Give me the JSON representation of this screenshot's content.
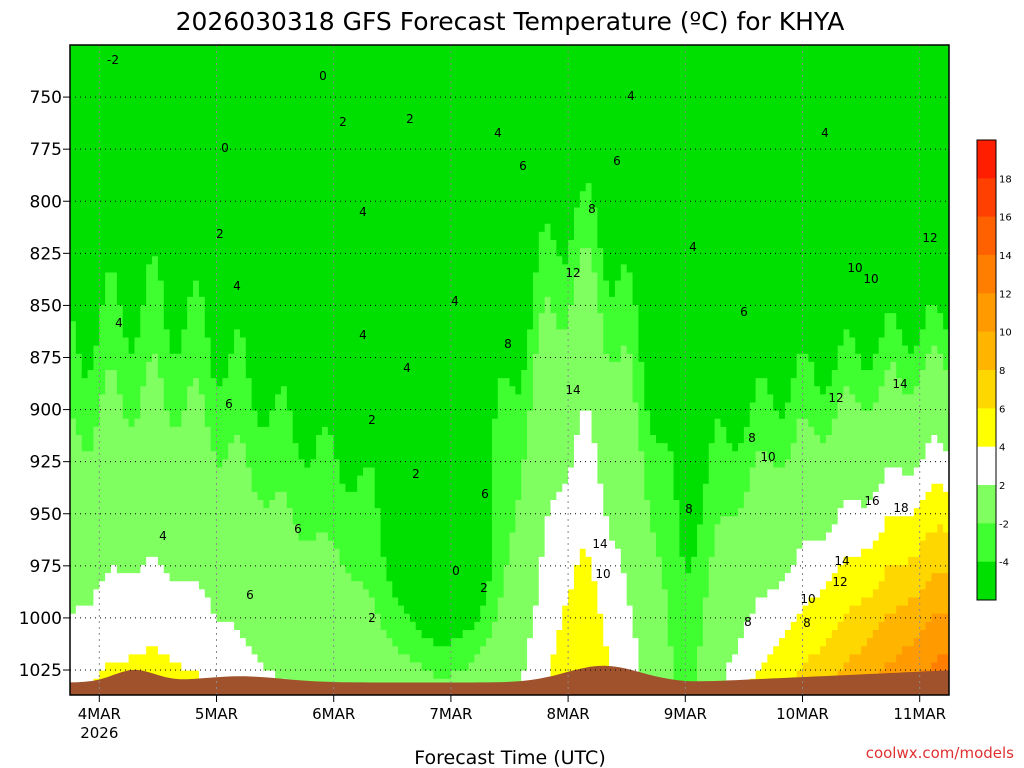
{
  "chart_data": {
    "type": "heatmap",
    "title": "2026030318 GFS Forecast Temperature (ºC) for KHYA",
    "xlabel": "Forecast Time (UTC)",
    "ylabel": "",
    "credit": "coolwx.com/models",
    "x_ticks": [
      {
        "label": "4MAR",
        "sublabel": "2026",
        "day": 0
      },
      {
        "label": "5MAR",
        "day": 1
      },
      {
        "label": "6MAR",
        "day": 2
      },
      {
        "label": "7MAR",
        "day": 3
      },
      {
        "label": "8MAR",
        "day": 4
      },
      {
        "label": "9MAR",
        "day": 5
      },
      {
        "label": "10MAR",
        "day": 6
      },
      {
        "label": "11MAR",
        "day": 7
      }
    ],
    "xlim": [
      -0.25,
      7.25
    ],
    "y_ticks": [
      750,
      775,
      800,
      825,
      850,
      875,
      900,
      925,
      950,
      975,
      1000,
      1025
    ],
    "ylim": [
      725,
      1037
    ],
    "legend": {
      "levels": [
        -4,
        -2,
        2,
        4,
        6,
        8,
        10,
        12,
        14,
        16,
        18
      ],
      "colors": [
        "#00e000",
        "#40ff30",
        "#80ff60",
        "#ffffff",
        "#ffff00",
        "#ffd700",
        "#ffb400",
        "#ff9a00",
        "#ff7e00",
        "#ff6000",
        "#ff4000",
        "#ff1e00"
      ]
    },
    "colors": {
      "under_ground": "#a0522d",
      "contour_positive": "#000000",
      "contour_zero": "#b0207a",
      "contour_negative": "#000000"
    },
    "contour_labels": [
      "-2",
      "0",
      "0",
      "0",
      "2",
      "2",
      "2",
      "2",
      "2",
      "2",
      "2",
      "4",
      "4",
      "4",
      "4",
      "4",
      "4",
      "4",
      "4",
      "4",
      "4",
      "4",
      "6",
      "6",
      "6",
      "6",
      "6",
      "6",
      "6",
      "8",
      "8",
      "8",
      "8",
      "8",
      "8",
      "10",
      "10",
      "10",
      "10",
      "10",
      "12",
      "12",
      "12",
      "12",
      "14",
      "14",
      "14",
      "14",
      "16",
      "18"
    ]
  }
}
